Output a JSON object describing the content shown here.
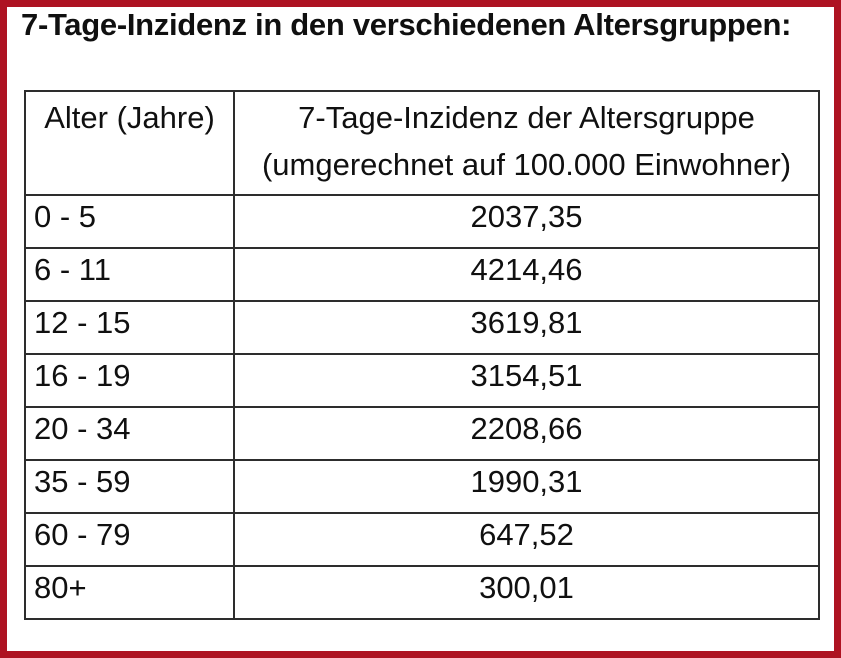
{
  "page": {
    "title": "7-Tage-Inzidenz in den verschiedenen Altersgruppen:"
  },
  "table": {
    "header": {
      "age_label": "Alter (Jahre)",
      "incidence_line1": "7-Tage-Inzidenz der Altersgruppe",
      "incidence_line2": "(umgerechnet auf 100.000 Einwohner)"
    },
    "rows": [
      {
        "age": "0 - 5",
        "incidence": "2037,35"
      },
      {
        "age": "6 - 11",
        "incidence": "4214,46"
      },
      {
        "age": "12 - 15",
        "incidence": "3619,81"
      },
      {
        "age": "16 - 19",
        "incidence": "3154,51"
      },
      {
        "age": "20 - 34",
        "incidence": "2208,66"
      },
      {
        "age": "35 - 59",
        "incidence": "1990,31"
      },
      {
        "age": "60 - 79",
        "incidence": "647,52"
      },
      {
        "age": "80+",
        "incidence": "300,01"
      }
    ]
  },
  "colors": {
    "frame": "#ae1322",
    "table_border": "#2d2d2d",
    "text": "#101010",
    "background": "#ffffff"
  },
  "chart_data": {
    "type": "table",
    "title": "7-Tage-Inzidenz in den verschiedenen Altersgruppen:",
    "columns": [
      "Alter (Jahre)",
      "7-Tage-Inzidenz der Altersgruppe (umgerechnet auf 100.000 Einwohner)"
    ],
    "categories": [
      "0 - 5",
      "6 - 11",
      "12 - 15",
      "16 - 19",
      "20 - 34",
      "35 - 59",
      "60 - 79",
      "80+"
    ],
    "values": [
      2037.35,
      4214.46,
      3619.81,
      3154.51,
      2208.66,
      1990.31,
      647.52,
      300.01
    ],
    "value_labels": [
      "2037,35",
      "4214,46",
      "3619,81",
      "3154,51",
      "2208,66",
      "1990,31",
      "647,52",
      "300,01"
    ]
  }
}
